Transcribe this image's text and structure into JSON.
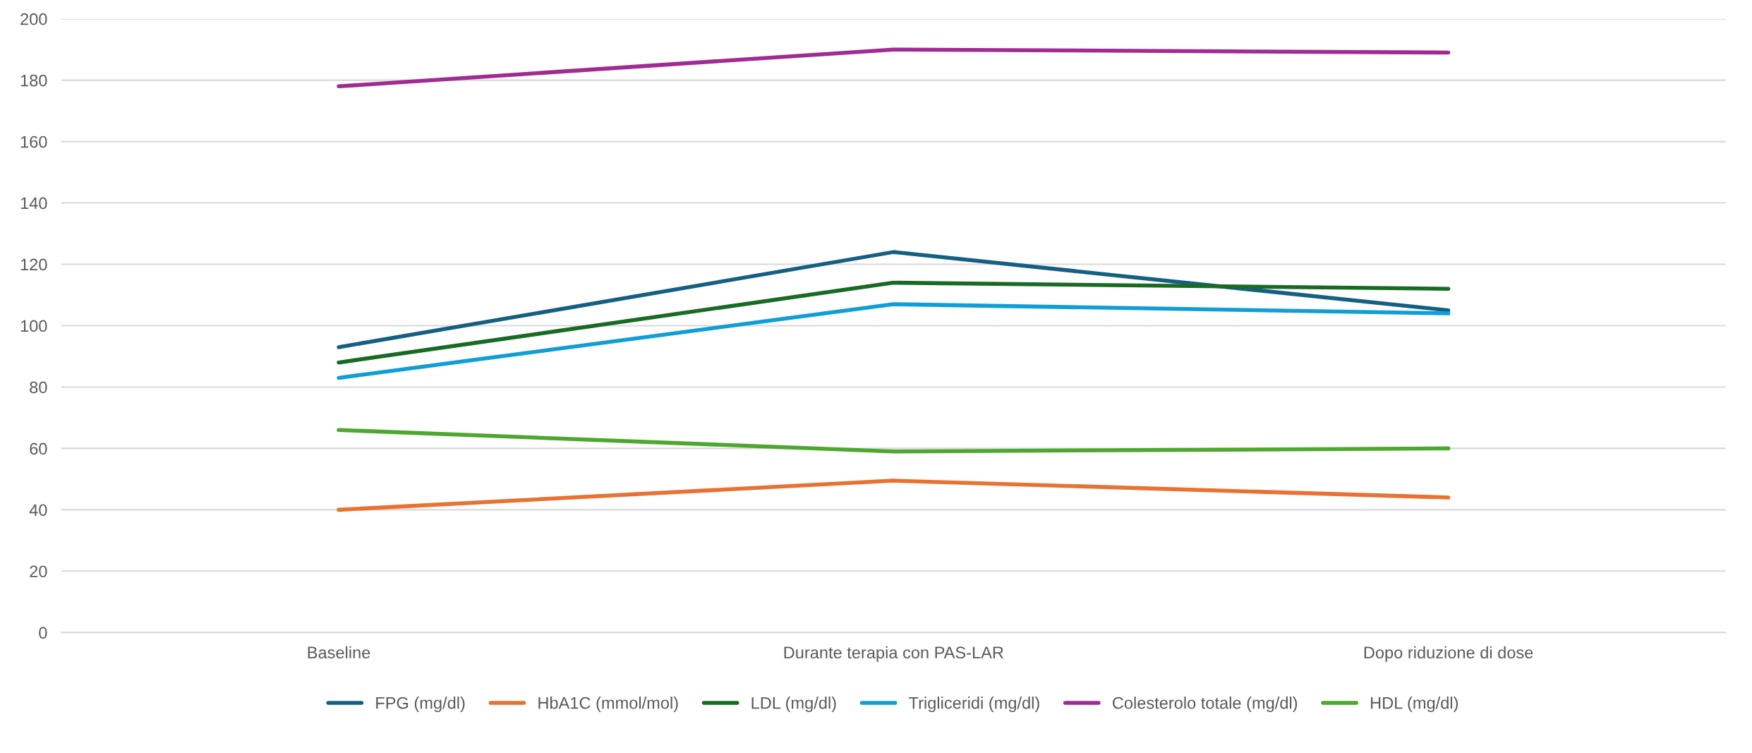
{
  "chart_data": {
    "type": "line",
    "categories": [
      "Baseline",
      "Durante terapia con PAS-LAR",
      "Dopo riduzione di dose"
    ],
    "series": [
      {
        "name": "FPG (mg/dl)",
        "color": "#156082",
        "values": [
          93,
          124,
          105
        ]
      },
      {
        "name": "HbA1C (mmol/mol)",
        "color": "#e97132",
        "values": [
          40,
          49.5,
          44
        ]
      },
      {
        "name": "LDL (mg/dl)",
        "color": "#196b24",
        "values": [
          88,
          114,
          112
        ]
      },
      {
        "name": "Trigliceridi (mg/dl)",
        "color": "#0f9ed5",
        "values": [
          83,
          107,
          104
        ]
      },
      {
        "name": "Colesterolo totale (mg/dl)",
        "color": "#a02b93",
        "values": [
          178,
          190,
          189
        ]
      },
      {
        "name": "HDL (mg/dl)",
        "color": "#4ea72e",
        "values": [
          66,
          59,
          60
        ]
      }
    ],
    "ylim": [
      0,
      200
    ],
    "yticks": [
      0,
      20,
      40,
      60,
      80,
      100,
      120,
      140,
      160,
      180,
      200
    ],
    "grid": "y",
    "legend": "bottom",
    "marker": "none",
    "line_style": "solid"
  }
}
